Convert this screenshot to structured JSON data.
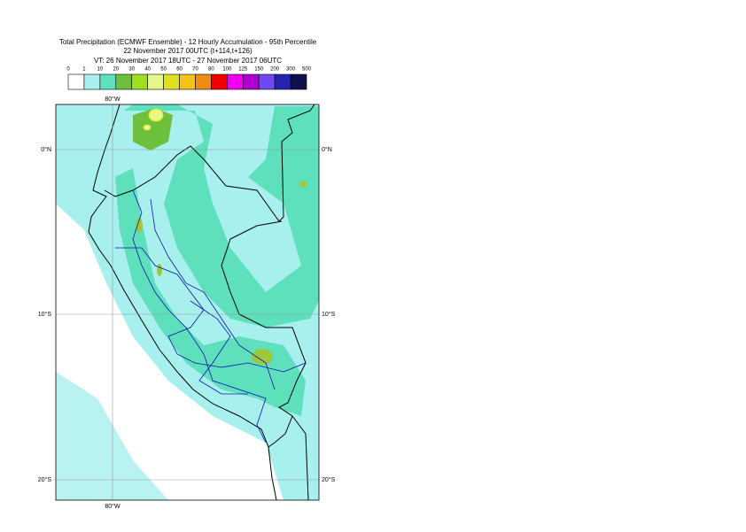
{
  "header": {
    "lines": [
      "Total Precipitation (ECMWF Ensemble) - 12 Hourly Accumulation - 95th Percentile",
      "22 November 2017 00UTC (t+114,t+126)",
      "VT: 26 November 2017 18UTC - 27 November 2017 06UTC"
    ]
  },
  "legend": {
    "labels": [
      0,
      1,
      10,
      20,
      30,
      40,
      50,
      60,
      70,
      80,
      100,
      125,
      150,
      200,
      300,
      500
    ],
    "colors": [
      "#ffffff",
      "#a8f0ee",
      "#5ee0bc",
      "#6cc03c",
      "#9ee020",
      "#e6f888",
      "#e0e020",
      "#f2c418",
      "#f08a10",
      "#f00000",
      "#f000f0",
      "#b000d0",
      "#7048f0",
      "#2424b0",
      "#10104e"
    ]
  },
  "map": {
    "lon_label": "80°W",
    "lat_labels": [
      "0°N",
      "10°S",
      "20°S"
    ]
  }
}
